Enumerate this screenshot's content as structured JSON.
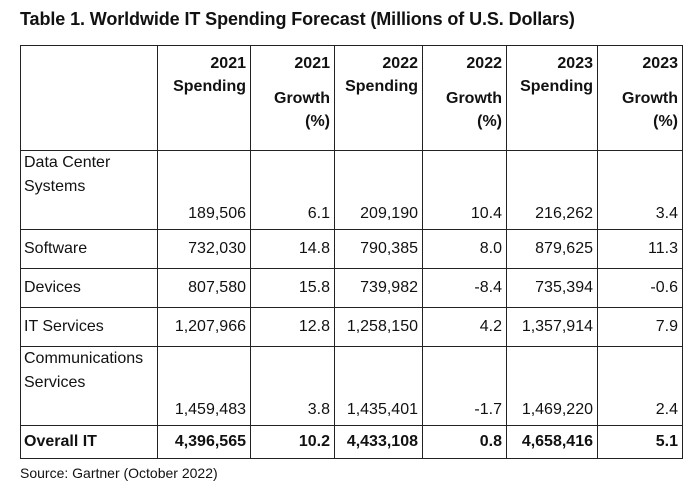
{
  "title": "Table 1. Worldwide IT Spending Forecast (Millions of U.S. Dollars)",
  "headers": [
    {
      "line1": "2021",
      "line2": "Spending",
      "line3": ""
    },
    {
      "line1": "2021",
      "line2": "Growth",
      "line3": "(%)"
    },
    {
      "line1": "2022",
      "line2": "Spending",
      "line3": ""
    },
    {
      "line1": "2022",
      "line2": "Growth",
      "line3": "(%)"
    },
    {
      "line1": "2023",
      "line2": "Spending",
      "line3": ""
    },
    {
      "line1": "2023",
      "line2": "Growth",
      "line3": "(%)"
    }
  ],
  "rows": [
    {
      "label_line1": "Data Center",
      "label_line2": "Systems",
      "values": [
        "189,506",
        "6.1",
        "209,190",
        "10.4",
        "216,262",
        "3.4"
      ]
    },
    {
      "label_line1": "Software",
      "label_line2": "",
      "values": [
        "732,030",
        "14.8",
        "790,385",
        "8.0",
        "879,625",
        "11.3"
      ]
    },
    {
      "label_line1": "Devices",
      "label_line2": "",
      "values": [
        "807,580",
        "15.8",
        "739,982",
        "-8.4",
        "735,394",
        "-0.6"
      ]
    },
    {
      "label_line1": "IT Services",
      "label_line2": "",
      "values": [
        "1,207,966",
        "12.8",
        "1,258,150",
        "4.2",
        "1,357,914",
        "7.9"
      ]
    },
    {
      "label_line1": "Communications",
      "label_line2": "Services",
      "values": [
        "1,459,483",
        "3.8",
        "1,435,401",
        "-1.7",
        "1,469,220",
        "2.4"
      ]
    }
  ],
  "total": {
    "label": "Overall IT",
    "values": [
      "4,396,565",
      "10.2",
      "4,433,108",
      "0.8",
      "4,658,416",
      "5.1"
    ]
  },
  "source": "Source: Gartner (October 2022)"
}
